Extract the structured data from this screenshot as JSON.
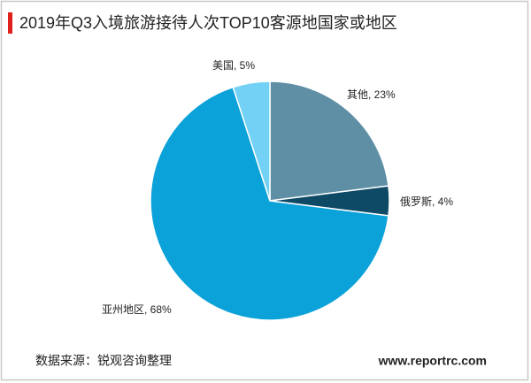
{
  "chart_data": {
    "type": "pie",
    "title": "2019年Q3入境旅游接待人次TOP10客源地国家或地区",
    "values": [
      23,
      4,
      68,
      5
    ],
    "value_labels": [
      "其他, 23%",
      "俄罗斯, 4%",
      "亚州地区, 68%",
      "美国, 5%"
    ],
    "colors": [
      "#5e8fa5",
      "#0e4a66",
      "#0ba1d9",
      "#72d1f5"
    ]
  },
  "footer": {
    "source": "数据来源：锐观咨询整理",
    "website": "www.reportrc.com"
  }
}
